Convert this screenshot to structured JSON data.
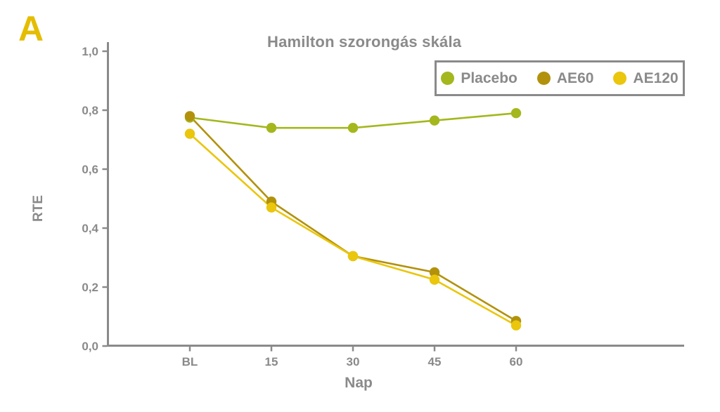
{
  "colors": {
    "axis": "#8a8a8a",
    "text": "#8a8a8a",
    "panel_label": "#e4bd00",
    "legend_border": "#8a8a8a",
    "background": "#ffffff"
  },
  "chart_data": {
    "type": "line",
    "title": "Hamilton szorongás skála",
    "panel_label": "A",
    "xlabel": "Nap",
    "ylabel": "RTE",
    "categories": [
      "BL",
      "15",
      "30",
      "45",
      "60"
    ],
    "y_tick_values": [
      0.0,
      0.2,
      0.4,
      0.6,
      0.8,
      1.0
    ],
    "y_tick_labels": [
      "0,0",
      "0,2",
      "0,4",
      "0,6",
      "0,8",
      "1,0"
    ],
    "ylim": [
      0,
      1
    ],
    "grid": false,
    "legend_position": "top-right",
    "series": [
      {
        "name": "Placebo",
        "color": "#a4b71d",
        "values": [
          0.775,
          0.74,
          0.74,
          0.765,
          0.79
        ]
      },
      {
        "name": "AE60",
        "color": "#b2910d",
        "values": [
          0.78,
          0.49,
          0.305,
          0.25,
          0.085
        ]
      },
      {
        "name": "AE120",
        "color": "#eac60d",
        "values": [
          0.72,
          0.47,
          0.305,
          0.225,
          0.07
        ]
      }
    ]
  }
}
